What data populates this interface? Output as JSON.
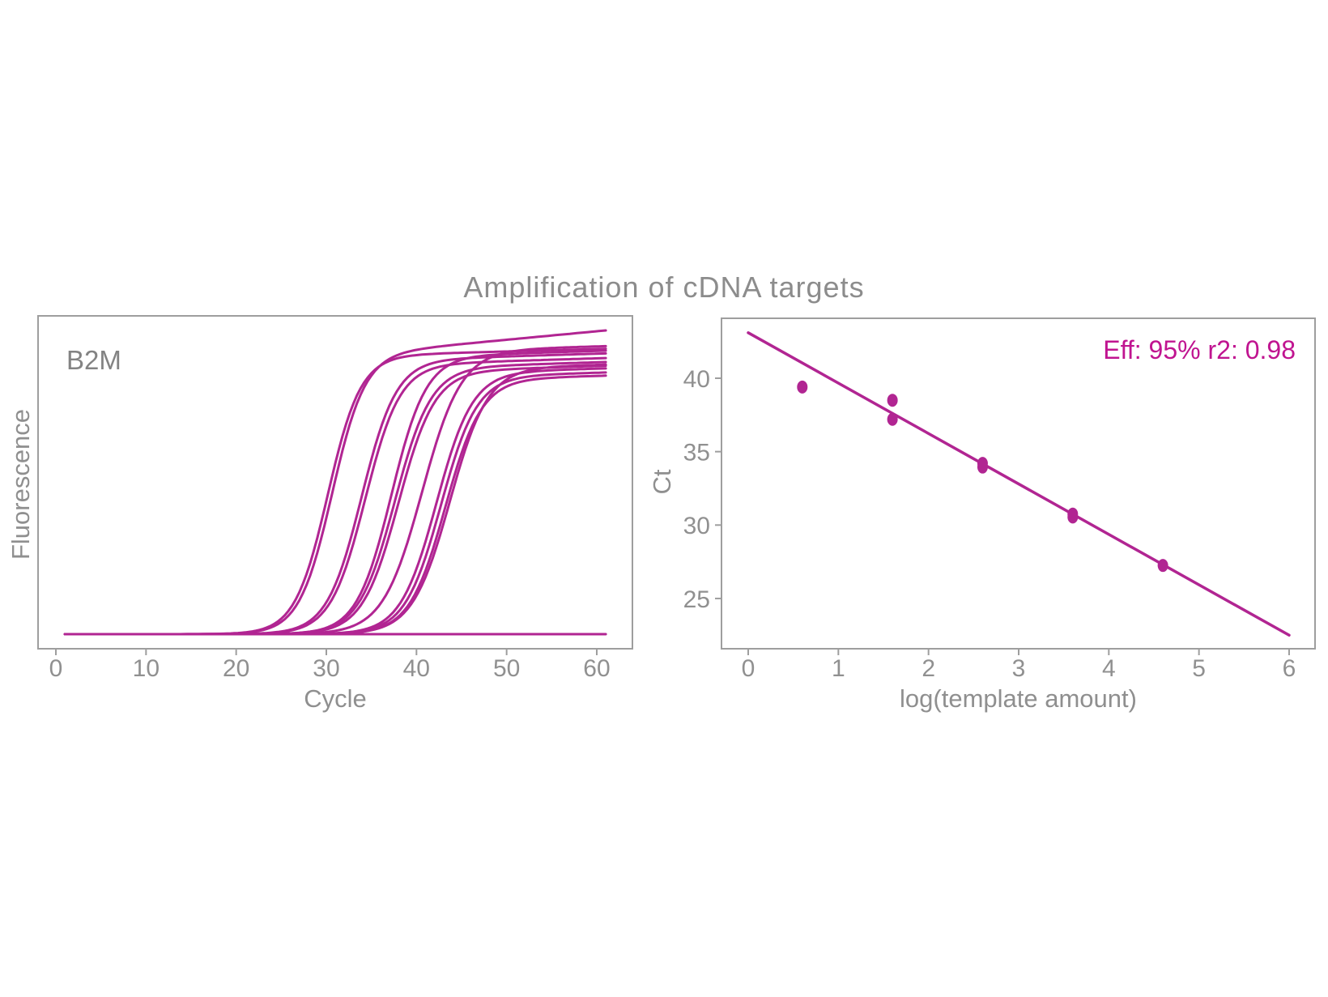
{
  "title": "Amplification of cDNA targets",
  "colors": {
    "accent": "#b12592",
    "annotation": "#c01490",
    "axis": "#9e9e9e",
    "tick_text": "#909090",
    "label_text": "#8f8f8f",
    "title_text": "#8c8c8c"
  },
  "left_panel": {
    "label": "B2M",
    "xlabel": "Cycle",
    "ylabel": "Fluorescence"
  },
  "right_panel": {
    "xlabel": "log(template amount)",
    "ylabel": "Ct",
    "annotation": "Eff: 95% r2: 0.98"
  },
  "chart_data": [
    {
      "type": "line",
      "panel": "left",
      "title": "Amplification of cDNA targets",
      "panel_label": "B2M",
      "xlabel": "Cycle",
      "ylabel": "Fluorescence",
      "xlim": [
        -2,
        64
      ],
      "x_ticks": [
        0,
        10,
        20,
        30,
        40,
        50,
        60
      ],
      "y_ticks": [],
      "grid": false,
      "legend": false,
      "cycle_range": [
        1,
        61
      ],
      "description": "Twelve sigmoidal qPCR amplification curves (duplicate 6-point dilution series) plus one flat no-template-control baseline; fluorescence normalized 0-1.",
      "curves": [
        {
          "name": "curve-1",
          "midpoint": 30.6,
          "steepness": 0.55,
          "plateau": 0.915,
          "drift": 0.0028
        },
        {
          "name": "curve-2",
          "midpoint": 30.15,
          "steepness": 0.55,
          "plateau": 0.915,
          "drift": 0.0008
        },
        {
          "name": "curve-3",
          "midpoint": 33.9,
          "steepness": 0.52,
          "plateau": 0.9,
          "drift": 0.0009
        },
        {
          "name": "curve-4",
          "midpoint": 34.3,
          "steepness": 0.52,
          "plateau": 0.885,
          "drift": 0.0009
        },
        {
          "name": "curve-5",
          "midpoint": 37.2,
          "steepness": 0.52,
          "plateau": 0.912,
          "drift": 0.0009
        },
        {
          "name": "curve-6",
          "midpoint": 37.6,
          "steepness": 0.5,
          "plateau": 0.875,
          "drift": 0.0009
        },
        {
          "name": "curve-7",
          "midpoint": 38.0,
          "steepness": 0.5,
          "plateau": 0.863,
          "drift": 0.0009
        },
        {
          "name": "curve-8",
          "midpoint": 40.6,
          "steepness": 0.46,
          "plateau": 0.932,
          "drift": 0.0008
        },
        {
          "name": "curve-9",
          "midpoint": 42.2,
          "steepness": 0.5,
          "plateau": 0.86,
          "drift": 0.0008
        },
        {
          "name": "curve-10",
          "midpoint": 42.7,
          "steepness": 0.5,
          "plateau": 0.847,
          "drift": 0.0008
        },
        {
          "name": "curve-11",
          "midpoint": 43.2,
          "steepness": 0.5,
          "plateau": 0.837,
          "drift": 0.0008
        },
        {
          "name": "curve-12",
          "midpoint": 43.7,
          "steepness": 0.48,
          "plateau": 0.874,
          "drift": 0.0008
        },
        {
          "name": "ntc-baseline",
          "midpoint": 999,
          "steepness": 0.5,
          "plateau": 0,
          "drift": 0
        }
      ]
    },
    {
      "type": "scatter",
      "panel": "right",
      "xlabel": "log(template amount)",
      "ylabel": "Ct",
      "xlim": [
        -0.3,
        6.3
      ],
      "ylim": [
        21.6,
        44.1
      ],
      "x_ticks": [
        0,
        1,
        2,
        3,
        4,
        5,
        6
      ],
      "y_ticks": [
        25,
        30,
        35,
        40
      ],
      "grid": false,
      "legend": false,
      "annotation": "Eff: 95% r2: 0.98",
      "efficiency_pct": 95,
      "r_squared": 0.98,
      "points": [
        {
          "x": 0.6,
          "ct": 39.4
        },
        {
          "x": 1.6,
          "ct": 38.5
        },
        {
          "x": 1.6,
          "ct": 37.2
        },
        {
          "x": 2.6,
          "ct": 34.2
        },
        {
          "x": 2.6,
          "ct": 33.95
        },
        {
          "x": 3.6,
          "ct": 30.75
        },
        {
          "x": 3.6,
          "ct": 30.55
        },
        {
          "x": 4.6,
          "ct": 27.25
        }
      ],
      "fit_line": {
        "x1": 0,
        "ct1": 43.1,
        "x2": 6,
        "ct2": 22.5,
        "slope": -3.43
      }
    }
  ]
}
